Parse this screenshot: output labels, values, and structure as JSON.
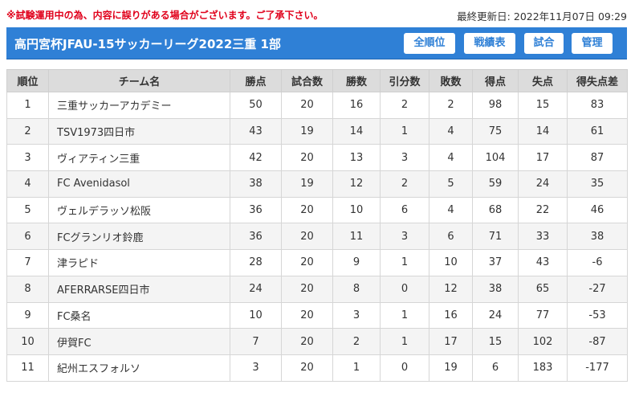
{
  "notice": "※試験運用中の為、内容に誤りがある場合がございます。ご了承下さい。",
  "last_updated_label": "最終更新日:",
  "last_updated_value": "2022年11月07日 09:29",
  "title": "高円宮杯JFAU-15サッカーリーグ2022三重 1部",
  "nav": {
    "standings_label": "全順位",
    "results_label": "戦績表",
    "matches_label": "試合",
    "admin_label": "管理"
  },
  "colors": {
    "accent": "#2f80d6",
    "notice": "#e0001b",
    "header_bg": "#dcdcdc",
    "row_alt": "#f4f4f4"
  },
  "table": {
    "columns": [
      "順位",
      "チーム名",
      "勝点",
      "試合数",
      "勝数",
      "引分数",
      "敗数",
      "得点",
      "失点",
      "得失点差"
    ],
    "rows": [
      [
        "1",
        "三重サッカーアカデミー",
        "50",
        "20",
        "16",
        "2",
        "2",
        "98",
        "15",
        "83"
      ],
      [
        "2",
        "TSV1973四日市",
        "43",
        "19",
        "14",
        "1",
        "4",
        "75",
        "14",
        "61"
      ],
      [
        "3",
        "ヴィアティン三重",
        "42",
        "20",
        "13",
        "3",
        "4",
        "104",
        "17",
        "87"
      ],
      [
        "4",
        "FC Avenidasol",
        "38",
        "19",
        "12",
        "2",
        "5",
        "59",
        "24",
        "35"
      ],
      [
        "5",
        "ヴェルデラッソ松阪",
        "36",
        "20",
        "10",
        "6",
        "4",
        "68",
        "22",
        "46"
      ],
      [
        "6",
        "FCグランリオ鈴鹿",
        "36",
        "20",
        "11",
        "3",
        "6",
        "71",
        "33",
        "38"
      ],
      [
        "7",
        "津ラピド",
        "28",
        "20",
        "9",
        "1",
        "10",
        "37",
        "43",
        "-6"
      ],
      [
        "8",
        "AFERRARSE四日市",
        "24",
        "20",
        "8",
        "0",
        "12",
        "38",
        "65",
        "-27"
      ],
      [
        "9",
        "FC桑名",
        "10",
        "20",
        "3",
        "1",
        "16",
        "24",
        "77",
        "-53"
      ],
      [
        "10",
        "伊賀FC",
        "7",
        "20",
        "2",
        "1",
        "17",
        "15",
        "102",
        "-87"
      ],
      [
        "11",
        "紀州エスフォルソ",
        "3",
        "20",
        "1",
        "0",
        "19",
        "6",
        "183",
        "-177"
      ]
    ]
  }
}
